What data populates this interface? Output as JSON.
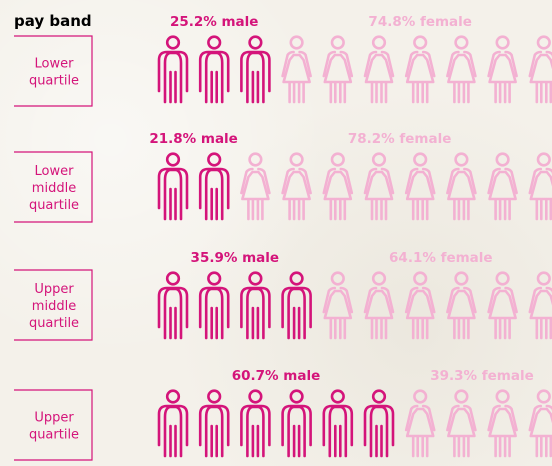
{
  "colors": {
    "male": "#d4147a",
    "female": "#f3b1d2",
    "bracket": "#d4147a",
    "background": "#f4f1ea"
  },
  "chart_data": {
    "type": "pictogram",
    "column_heading": "pay band",
    "icons_per_row": 10,
    "categories": [
      "Lower\nquartile",
      "Lower\nmiddle\nquartile",
      "Upper\nmiddle\nquartile",
      "Upper\nquartile"
    ],
    "series": [
      {
        "name": "male",
        "values": [
          25.2,
          21.8,
          35.9,
          60.7
        ],
        "labels": [
          "25.2% male",
          "21.8% male",
          "35.9% male",
          "60.7% male"
        ]
      },
      {
        "name": "female",
        "values": [
          74.8,
          78.2,
          64.1,
          39.3
        ],
        "labels": [
          "74.8% female",
          "78.2% female",
          "64.1% female",
          "39.3% female"
        ]
      }
    ]
  }
}
